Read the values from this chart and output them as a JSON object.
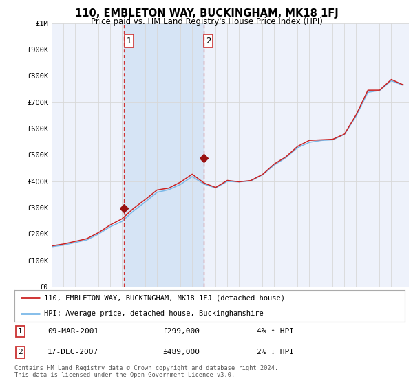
{
  "title": "110, EMBLETON WAY, BUCKINGHAM, MK18 1FJ",
  "subtitle": "Price paid vs. HM Land Registry's House Price Index (HPI)",
  "ylim": [
    0,
    1000000
  ],
  "yticks": [
    0,
    100000,
    200000,
    300000,
    400000,
    500000,
    600000,
    700000,
    800000,
    900000,
    1000000
  ],
  "ytick_labels": [
    "£0",
    "£100K",
    "£200K",
    "£300K",
    "£400K",
    "£500K",
    "£600K",
    "£700K",
    "£800K",
    "£900K",
    "£1M"
  ],
  "background_color": "#ffffff",
  "plot_bg_color": "#eef2fb",
  "shade_color": "#d6e4f5",
  "grid_color": "#d8d8d8",
  "sale1_x": 2001.19,
  "sale1_price": 299000,
  "sale2_x": 2007.96,
  "sale2_price": 489000,
  "vline_color": "#cc3333",
  "legend_label_red": "110, EMBLETON WAY, BUCKINGHAM, MK18 1FJ (detached house)",
  "legend_label_blue": "HPI: Average price, detached house, Buckinghamshire",
  "table_rows": [
    {
      "num": "1",
      "date": "09-MAR-2001",
      "price": "£299,000",
      "pct": "4% ↑ HPI"
    },
    {
      "num": "2",
      "date": "17-DEC-2007",
      "price": "£489,000",
      "pct": "2% ↓ HPI"
    }
  ],
  "footnote": "Contains HM Land Registry data © Crown copyright and database right 2024.\nThis data is licensed under the Open Government Licence v3.0.",
  "hpi_color": "#7ab8e8",
  "price_color": "#cc2222",
  "marker_color": "#991111",
  "xlim_left": 1995.0,
  "xlim_right": 2025.5
}
